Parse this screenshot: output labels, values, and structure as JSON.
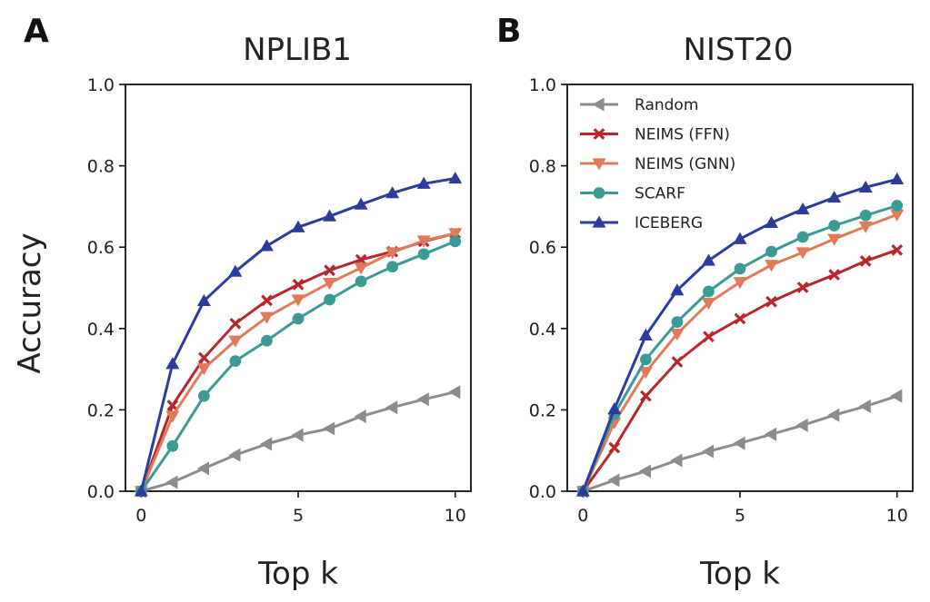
{
  "figure": {
    "shared_ylabel": "Accuracy",
    "shared_xlabel": "Top k",
    "legend_panel": 1
  },
  "series_styles": [
    {
      "name": "Random",
      "color": "#8c8c8c",
      "marker": "triangle-left"
    },
    {
      "name": "NEIMS (FFN)",
      "color": "#b8262e",
      "marker": "x"
    },
    {
      "name": "NEIMS (GNN)",
      "color": "#e07b5a",
      "marker": "triangle-down"
    },
    {
      "name": "SCARF",
      "color": "#3a9b94",
      "marker": "circle"
    },
    {
      "name": "ICEBERG",
      "color": "#2c3c9c",
      "marker": "triangle-up"
    }
  ],
  "chart_data": [
    {
      "type": "line",
      "panel_label": "A",
      "title": "NPLIB1",
      "xlabel": "Top k",
      "ylabel": "Accuracy",
      "x": [
        0,
        1,
        2,
        3,
        4,
        5,
        6,
        7,
        8,
        9,
        10
      ],
      "xlim": [
        -0.5,
        10.5
      ],
      "ylim": [
        0.0,
        1.0
      ],
      "xticks": [
        "0",
        "5",
        "10"
      ],
      "yticks": [
        "0.0",
        "0.2",
        "0.4",
        "0.6",
        "0.8",
        "1.0"
      ],
      "grid": false,
      "legend": "none",
      "series": [
        {
          "name": "Random",
          "values": [
            0.0,
            0.022,
            0.056,
            0.089,
            0.116,
            0.138,
            0.154,
            0.184,
            0.206,
            0.226,
            0.244
          ]
        },
        {
          "name": "NEIMS (FFN)",
          "values": [
            0.0,
            0.211,
            0.328,
            0.412,
            0.469,
            0.508,
            0.543,
            0.569,
            0.589,
            0.614,
            0.634
          ]
        },
        {
          "name": "NEIMS (GNN)",
          "values": [
            0.0,
            0.185,
            0.302,
            0.37,
            0.428,
            0.471,
            0.512,
            0.549,
            0.587,
            0.616,
            0.634
          ]
        },
        {
          "name": "SCARF",
          "values": [
            0.0,
            0.111,
            0.234,
            0.32,
            0.37,
            0.424,
            0.471,
            0.516,
            0.552,
            0.583,
            0.614
          ]
        },
        {
          "name": "ICEBERG",
          "values": [
            0.0,
            0.313,
            0.468,
            0.54,
            0.603,
            0.649,
            0.676,
            0.705,
            0.733,
            0.756,
            0.769
          ]
        }
      ]
    },
    {
      "type": "line",
      "panel_label": "B",
      "title": "NIST20",
      "xlabel": "Top k",
      "ylabel": "",
      "x": [
        0,
        1,
        2,
        3,
        4,
        5,
        6,
        7,
        8,
        9,
        10
      ],
      "xlim": [
        -0.5,
        10.5
      ],
      "ylim": [
        0.0,
        1.0
      ],
      "xticks": [
        "0",
        "5",
        "10"
      ],
      "yticks": [
        "0.0",
        "0.2",
        "0.4",
        "0.6",
        "0.8",
        "1.0"
      ],
      "grid": false,
      "legend": "top-left",
      "series": [
        {
          "name": "Random",
          "values": [
            0.0,
            0.027,
            0.049,
            0.076,
            0.098,
            0.118,
            0.14,
            0.162,
            0.187,
            0.209,
            0.234
          ]
        },
        {
          "name": "NEIMS (FFN)",
          "values": [
            0.0,
            0.107,
            0.234,
            0.318,
            0.38,
            0.424,
            0.466,
            0.501,
            0.532,
            0.566,
            0.593
          ]
        },
        {
          "name": "NEIMS (GNN)",
          "values": [
            0.0,
            0.169,
            0.293,
            0.387,
            0.463,
            0.514,
            0.556,
            0.587,
            0.62,
            0.651,
            0.68
          ]
        },
        {
          "name": "SCARF",
          "values": [
            0.0,
            0.189,
            0.324,
            0.416,
            0.491,
            0.547,
            0.589,
            0.625,
            0.653,
            0.678,
            0.702
          ]
        },
        {
          "name": "ICEBERG",
          "values": [
            0.0,
            0.202,
            0.383,
            0.494,
            0.567,
            0.62,
            0.66,
            0.693,
            0.722,
            0.747,
            0.767
          ]
        }
      ]
    }
  ]
}
